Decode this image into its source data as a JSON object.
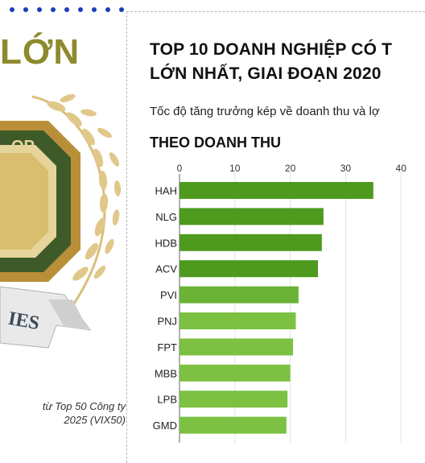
{
  "left_panel": {
    "title": "LỚN",
    "caption_line1": "từ Top 50 Công ty",
    "caption_line2": "2025 (VIX50)",
    "emblem_text_top": "OP",
    "emblem_text_ribbon": "IES"
  },
  "header": {
    "title_line1": "TOP 10 DOANH NGHIỆP CÓ T",
    "title_line2": "LỚN NHẤT, GIAI ĐOẠN 2020",
    "subtitle": "Tốc độ tăng trưởng kép về doanh thu và lợ"
  },
  "chart_data": {
    "type": "bar",
    "orientation": "horizontal",
    "title": "THEO DOANH THU",
    "categories": [
      "HAH",
      "NLG",
      "HDB",
      "ACV",
      "PVI",
      "PNJ",
      "FPT",
      "MBB",
      "LPB",
      "GMD"
    ],
    "values": [
      35,
      26,
      25.7,
      25,
      21.5,
      21,
      20.5,
      20,
      19.5,
      19.3
    ],
    "xlim": [
      0,
      40
    ],
    "xticks": [
      0,
      10,
      20,
      30,
      40
    ],
    "bar_colors": [
      "#4d9a1e",
      "#4d9a1e",
      "#4d9a1e",
      "#4d9a1e",
      "#6bb336",
      "#7cc142",
      "#7cc142",
      "#7cc142",
      "#7cc142",
      "#7cc142"
    ],
    "grid": true
  },
  "colors": {
    "accent_blue": "#1a3db8",
    "olive": "#8d8a2d",
    "gold": "#c9a344"
  }
}
